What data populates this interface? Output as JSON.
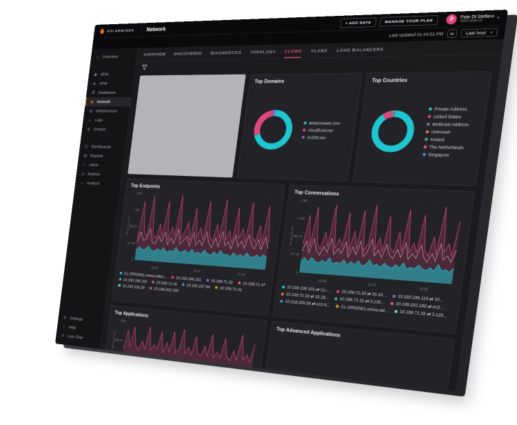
{
  "brand": {
    "wordmark": "solarwinds",
    "accent_orange": "#f4711f",
    "accent_pink": "#e0457b",
    "accent_cyan": "#1ec6cf"
  },
  "icons": {
    "chevron_down": "▾"
  },
  "header": {
    "page_title": "Network",
    "add_data_label": "+ ADD DATA",
    "manage_plan_label": "MANAGE YOUR PLAN",
    "user": {
      "initial": "P",
      "name": "Pete Di Stefano",
      "org": "ORG-NVA-01"
    },
    "last_updated": "Last updated 01:44:51 PM",
    "m_button": "M",
    "time_range": "Last hour"
  },
  "sidebar": {
    "top": [
      {
        "name": "sidebar-item-overview",
        "icon": "home-icon",
        "glyph": "⌂",
        "label": "Overview"
      }
    ],
    "monitoring": [
      {
        "name": "sidebar-item-sem",
        "icon": "shield-icon",
        "glyph": "▣",
        "label": "SEM"
      },
      {
        "name": "sidebar-item-apm",
        "icon": "pulse-icon",
        "glyph": "◈",
        "label": "APM"
      },
      {
        "name": "sidebar-item-databases",
        "icon": "database-icon",
        "glyph": "≣",
        "label": "Databases"
      },
      {
        "name": "sidebar-item-network",
        "icon": "network-icon",
        "glyph": "◉",
        "label": "Network",
        "active": true
      },
      {
        "name": "sidebar-item-infrastructure",
        "icon": "server-icon",
        "glyph": "▤",
        "label": "Infrastructure"
      },
      {
        "name": "sidebar-item-logs",
        "icon": "logs-icon",
        "glyph": "≡",
        "label": "Logs"
      },
      {
        "name": "sidebar-item-groups",
        "icon": "groups-icon",
        "glyph": "⊞",
        "label": "Groups"
      }
    ],
    "analysis": [
      {
        "name": "sidebar-item-dashboards",
        "icon": "dashboard-icon",
        "glyph": "◫",
        "label": "Dashboards"
      },
      {
        "name": "sidebar-item-reports",
        "icon": "report-icon",
        "glyph": "▥",
        "label": "Reports"
      },
      {
        "name": "sidebar-item-alerts",
        "icon": "alert-icon",
        "glyph": "⚠",
        "label": "Alerts"
      },
      {
        "name": "sidebar-item-explore",
        "icon": "explore-icon",
        "glyph": "◎",
        "label": "Explore"
      },
      {
        "name": "sidebar-item-analyze",
        "icon": "analyze-icon",
        "glyph": "≈",
        "label": "Analyze"
      }
    ],
    "bottom": [
      {
        "name": "sidebar-item-settings",
        "icon": "gear-icon",
        "glyph": "⚙",
        "label": "Settings"
      },
      {
        "name": "sidebar-item-help",
        "icon": "help-icon",
        "glyph": "?",
        "label": "Help"
      },
      {
        "name": "sidebar-item-live-chat",
        "icon": "chat-icon",
        "glyph": "✉",
        "label": "Live Chat"
      }
    ]
  },
  "tabs": [
    {
      "name": "tab-overview",
      "label": "OVERVIEW"
    },
    {
      "name": "tab-discovered",
      "label": "DISCOVERED"
    },
    {
      "name": "tab-diagnostics",
      "label": "DIAGNOSTICS"
    },
    {
      "name": "tab-topology",
      "label": "TOPOLOGY"
    },
    {
      "name": "tab-flows",
      "label": "FLOWS",
      "active": true
    },
    {
      "name": "tab-vlans",
      "label": "VLANS"
    },
    {
      "name": "tab-load-balancers",
      "label": "LOAD BALANCERS"
    }
  ],
  "panels": {
    "domains": {
      "title": "Top Domains",
      "legend": [
        {
          "label": "amazonaws.com",
          "color": "#1ec6cf"
        },
        {
          "label": "cloudfront.net",
          "color": "#e0457b"
        },
        {
          "label": "1e100.net",
          "color": "#9061c2"
        }
      ]
    },
    "countries": {
      "title": "Top Countries",
      "legend": [
        {
          "label": "Private Address",
          "color": "#1ec6cf"
        },
        {
          "label": "United States",
          "color": "#e0457b"
        },
        {
          "label": "Multicast Address",
          "color": "#9061c2"
        },
        {
          "label": "Unknown",
          "color": "#e0724a"
        },
        {
          "label": "Ireland",
          "color": "#4caf7d"
        },
        {
          "label": "The Netherlands",
          "color": "#d9579a"
        },
        {
          "label": "Singapore",
          "color": "#4a90d9"
        }
      ]
    },
    "endpoints": {
      "title": "Top Endpoints",
      "legend": [
        {
          "label": "CL-ORION01.emea.sales...",
          "color": "#1ec6cf"
        },
        {
          "label": "10.160.196.101",
          "color": "#e0457b"
        },
        {
          "label": "10.199.71.32",
          "color": "#9061c2"
        },
        {
          "label": "10.199.71.47",
          "color": "#e0724a"
        },
        {
          "label": "10.160.196.119",
          "color": "#4caf7d"
        },
        {
          "label": "10.199.71.45",
          "color": "#d9579a"
        },
        {
          "label": "10.160.197.94",
          "color": "#4a90d9"
        },
        {
          "label": "10.199.71.41",
          "color": "#c9a227"
        },
        {
          "label": "10.136.233.39",
          "color": "#6fd0b2"
        },
        {
          "label": "10.199.202.199",
          "color": "#b05fa3"
        }
      ]
    },
    "conversations": {
      "title": "Top Conversations",
      "legend": [
        {
          "label": "10.160.196.101 ⇄ CL-...",
          "color": "#1ec6cf"
        },
        {
          "label": "10.199.71.32 ⇄ 10.19...",
          "color": "#e0457b"
        },
        {
          "label": "10.160.196.119 ⇄ 10...",
          "color": "#9061c2"
        },
        {
          "label": "10.199.71.32 ⇄ 10.19...",
          "color": "#e0724a"
        },
        {
          "label": "10.199.71.32 ⇄ 3.136...",
          "color": "#4caf7d"
        },
        {
          "label": "10.199.202.199 ⇄ ec2...",
          "color": "#d9579a"
        },
        {
          "label": "10.218.200.58 ⇄ ec2-5...",
          "color": "#4a90d9"
        },
        {
          "label": "CL-ORION01.emea.sal...",
          "color": "#c9a227"
        },
        {
          "label": "10.199.71.32 ⇄ 3.129...",
          "color": "#6fd0b2"
        }
      ]
    },
    "applications": {
      "title": "Top Applications"
    },
    "advanced": {
      "title": "Top Advanced Applications"
    }
  },
  "chart_data": [
    {
      "id": "domains-donut",
      "type": "pie",
      "title": "Top Domains",
      "labels": [
        "amazonaws.com",
        "cloudfront.net",
        "1e100.net"
      ],
      "values": [
        70,
        27,
        3
      ],
      "colors": [
        "#1ec6cf",
        "#e0457b",
        "#9061c2"
      ]
    },
    {
      "id": "countries-donut",
      "type": "pie",
      "title": "Top Countries",
      "labels": [
        "Private Address",
        "United States",
        "Multicast Address",
        "Unknown",
        "Ireland",
        "The Netherlands",
        "Singapore"
      ],
      "values": [
        90,
        5.5,
        1,
        0.9,
        0.9,
        0.9,
        0.8
      ],
      "colors": [
        "#1ec6cf",
        "#e0457b",
        "#9061c2",
        "#e0724a",
        "#4caf7d",
        "#d9579a",
        "#4a90d9"
      ]
    },
    {
      "id": "endpoints-chart",
      "type": "area",
      "title": "Top Endpoints",
      "ylabel": "bits per second",
      "yticks": [
        "1.9M",
        "1.4M",
        "954.7K",
        "477.4K",
        "0"
      ],
      "xticks": [
        "01:00",
        "01:15",
        "01:30"
      ],
      "series": [
        {
          "name": "peaks",
          "color": "#e0457b",
          "fill": true,
          "fillOpacity": 0.22,
          "width": 1.1,
          "values": [
            0.32,
            0.88,
            0.44,
            0.36,
            0.97,
            0.4,
            0.34,
            0.56,
            0.38,
            0.9,
            0.33,
            0.52,
            0.4,
            1.0,
            0.36,
            0.46,
            0.62,
            0.34,
            0.82,
            0.38,
            0.54,
            0.36,
            0.93,
            0.44,
            0.34,
            0.6,
            0.4,
            0.96,
            0.38,
            0.52,
            0.34,
            0.86,
            0.42,
            0.56,
            0.36,
            0.94,
            0.46,
            0.38,
            0.62,
            0.36,
            0.9,
            0.4
          ]
        },
        {
          "name": "baseline",
          "color": "#1ec6cf",
          "fill": true,
          "fillOpacity": 0.55,
          "width": 1,
          "values": [
            0.15,
            0.2,
            0.16,
            0.17,
            0.22,
            0.16,
            0.15,
            0.19,
            0.16,
            0.21,
            0.15,
            0.18,
            0.16,
            0.23,
            0.16,
            0.17,
            0.2,
            0.15,
            0.22,
            0.16,
            0.18,
            0.16,
            0.22,
            0.17,
            0.15,
            0.2,
            0.16,
            0.23,
            0.17,
            0.18,
            0.15,
            0.21,
            0.16,
            0.19,
            0.16,
            0.22,
            0.17,
            0.16,
            0.2,
            0.16,
            0.21,
            0.17
          ]
        },
        {
          "name": "mid-band",
          "color": "#f2aac6",
          "fill": false,
          "width": 0.9,
          "values": [
            0.26,
            0.42,
            0.3,
            0.32,
            0.48,
            0.28,
            0.26,
            0.38,
            0.3,
            0.44,
            0.26,
            0.36,
            0.28,
            0.5,
            0.28,
            0.34,
            0.4,
            0.26,
            0.46,
            0.28,
            0.36,
            0.28,
            0.48,
            0.32,
            0.26,
            0.4,
            0.28,
            0.5,
            0.3,
            0.36,
            0.26,
            0.46,
            0.3,
            0.38,
            0.28,
            0.48,
            0.34,
            0.28,
            0.42,
            0.28,
            0.46,
            0.3
          ]
        }
      ]
    },
    {
      "id": "conversations-chart",
      "type": "area",
      "title": "Top Conversations",
      "ylabel": "bits per second",
      "yticks": [
        "1.9M",
        "1.4M",
        "954.7K",
        "477.4K",
        "0"
      ],
      "xticks": [
        "01:00",
        "01:15",
        "01:30"
      ],
      "series": [
        {
          "name": "peaks",
          "color": "#e0457b",
          "fill": true,
          "fillOpacity": 0.22,
          "width": 1.1,
          "values": [
            0.4,
            0.8,
            0.36,
            0.92,
            0.42,
            0.34,
            0.58,
            0.38,
            0.96,
            0.36,
            0.5,
            0.4,
            0.86,
            0.34,
            0.62,
            0.38,
            0.9,
            0.36,
            0.46,
            0.98,
            0.38,
            0.54,
            0.36,
            0.84,
            0.42,
            0.36,
            0.64,
            0.38,
            0.94,
            0.36,
            0.5,
            0.38,
            0.88,
            0.42,
            0.34,
            0.6,
            0.36,
            1.0,
            0.4,
            0.52,
            0.36,
            0.82
          ]
        },
        {
          "name": "baseline",
          "color": "#1ec6cf",
          "fill": true,
          "fillOpacity": 0.55,
          "width": 1,
          "values": [
            0.16,
            0.21,
            0.15,
            0.22,
            0.17,
            0.15,
            0.19,
            0.16,
            0.23,
            0.15,
            0.18,
            0.16,
            0.22,
            0.15,
            0.2,
            0.16,
            0.22,
            0.15,
            0.17,
            0.24,
            0.16,
            0.19,
            0.15,
            0.21,
            0.17,
            0.15,
            0.2,
            0.16,
            0.23,
            0.15,
            0.18,
            0.16,
            0.22,
            0.17,
            0.15,
            0.19,
            0.15,
            0.24,
            0.16,
            0.18,
            0.15,
            0.21
          ]
        },
        {
          "name": "mid-band",
          "color": "#f2aac6",
          "fill": false,
          "width": 0.9,
          "values": [
            0.3,
            0.44,
            0.28,
            0.48,
            0.32,
            0.26,
            0.38,
            0.3,
            0.5,
            0.28,
            0.36,
            0.3,
            0.46,
            0.26,
            0.4,
            0.3,
            0.48,
            0.28,
            0.34,
            0.52,
            0.3,
            0.38,
            0.28,
            0.46,
            0.32,
            0.28,
            0.4,
            0.3,
            0.5,
            0.28,
            0.36,
            0.3,
            0.48,
            0.32,
            0.26,
            0.38,
            0.28,
            0.52,
            0.3,
            0.36,
            0.28,
            0.44
          ]
        }
      ]
    },
    {
      "id": "applications-chart",
      "type": "area",
      "title": "Top Applications",
      "ylabel": "bits per second",
      "yticks": [
        "1.9M",
        "954.7K",
        "0"
      ],
      "xticks": [],
      "series": [
        {
          "name": "peaks",
          "color": "#e0457b",
          "fill": true,
          "fillOpacity": 0.22,
          "width": 1.1,
          "values": [
            0.3,
            0.78,
            0.36,
            0.88,
            0.4,
            0.32,
            0.54,
            0.36,
            0.92,
            0.34,
            0.48,
            0.38,
            0.82,
            0.32,
            0.58,
            0.36,
            0.86,
            0.34,
            0.44,
            0.94,
            0.36,
            0.52,
            0.34,
            0.8,
            0.4,
            0.34,
            0.6,
            0.36,
            0.9,
            0.34,
            0.48,
            0.36,
            0.84,
            0.4,
            0.32,
            0.56,
            0.34,
            0.96,
            0.38,
            0.5,
            0.34,
            0.78
          ]
        },
        {
          "name": "baseline",
          "color": "#1ec6cf",
          "fill": true,
          "fillOpacity": 0.55,
          "width": 1,
          "values": [
            0.14,
            0.19,
            0.15,
            0.16,
            0.21,
            0.15,
            0.14,
            0.18,
            0.15,
            0.2,
            0.14,
            0.17,
            0.15,
            0.22,
            0.15,
            0.16,
            0.19,
            0.14,
            0.21,
            0.15,
            0.17,
            0.15,
            0.21,
            0.16,
            0.14,
            0.19,
            0.15,
            0.22,
            0.16,
            0.17,
            0.14,
            0.2,
            0.15,
            0.18,
            0.15,
            0.21,
            0.16,
            0.15,
            0.19,
            0.15,
            0.2,
            0.16
          ]
        }
      ]
    }
  ]
}
